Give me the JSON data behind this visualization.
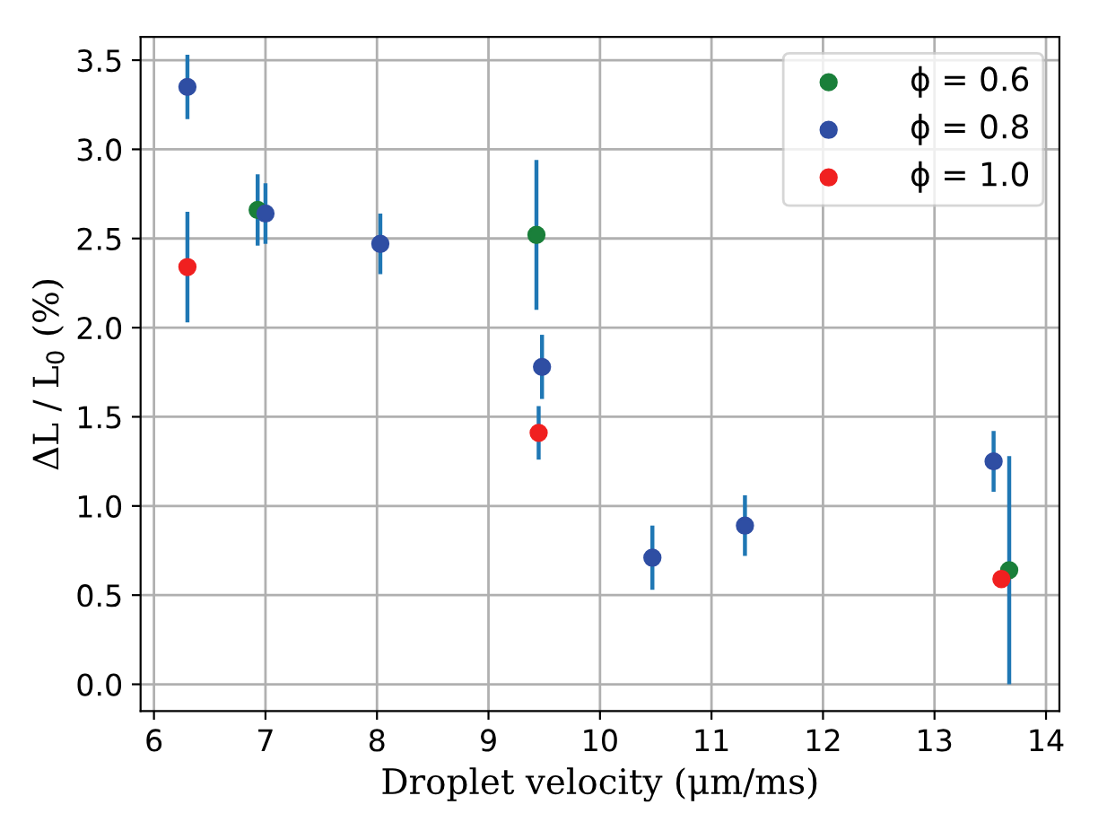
{
  "chart_data": {
    "type": "scatter",
    "xlabel": "Droplet velocity (μm/ms)",
    "ylabel": "ΔL / L$_{0}$ (%)",
    "xlim": [
      5.88,
      14.12
    ],
    "xticks": [
      6,
      7,
      8,
      9,
      10,
      11,
      12,
      13,
      14
    ],
    "ylim": [
      -0.15,
      3.63
    ],
    "yticks": [
      {
        "value": 0,
        "label": "0.0"
      },
      0.5,
      {
        "value": 1,
        "label": "1.0"
      },
      1.5,
      {
        "value": 2,
        "label": "2.0"
      },
      2.5,
      {
        "value": 3,
        "label": "3.0"
      },
      3.5
    ],
    "grid": true,
    "legend": "top right",
    "marker": "circle",
    "series": [
      {
        "name": "ϕ = 0.6",
        "color": "#1a7f3a",
        "x": [
          6.93,
          9.43,
          13.67
        ],
        "values": [
          2.66,
          2.52,
          0.64
        ],
        "errors": [
          0.2,
          0.42,
          0.64
        ]
      },
      {
        "name": "ϕ = 0.8",
        "color": "#2f4ea3",
        "x": [
          6.3,
          7.0,
          8.03,
          9.48,
          10.47,
          11.3,
          13.53
        ],
        "values": [
          3.35,
          2.64,
          2.47,
          1.78,
          0.71,
          0.89,
          1.25
        ],
        "errors": [
          0.18,
          0.17,
          0.17,
          0.18,
          0.18,
          0.17,
          0.17
        ]
      },
      {
        "name": "ϕ = 1.0",
        "color": "#f02020",
        "x": [
          6.3,
          9.45,
          13.6
        ],
        "values": [
          2.34,
          1.41,
          0.59
        ],
        "errors": [
          0.31,
          0.15,
          null
        ]
      }
    ]
  }
}
